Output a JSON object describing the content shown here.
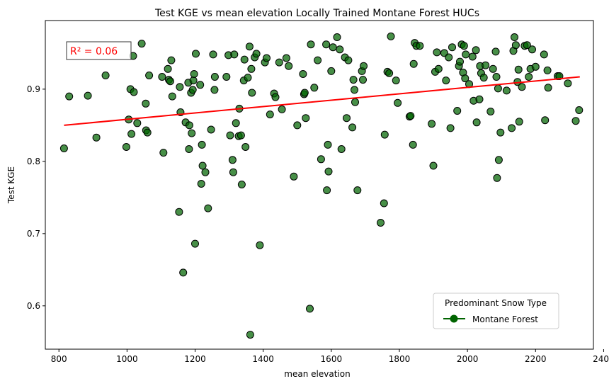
{
  "chart_data": {
    "type": "scatter",
    "title": "Test KGE vs mean elevation Locally Trained Montane Forest HUCs",
    "xlabel": "mean elevation",
    "ylabel": "Test KGE",
    "xlim": [
      760,
      2370
    ],
    "ylim": [
      0.54,
      0.995
    ],
    "xticks": [
      800,
      1000,
      1200,
      1400,
      1600,
      1800,
      2000,
      2200,
      2400
    ],
    "yticks": [
      0.6,
      0.7,
      0.8,
      0.9
    ],
    "grid": false,
    "legend": {
      "title": "Predominant Snow Type",
      "entries": [
        {
          "label": "Montane Forest",
          "color": "#006400"
        }
      ],
      "placement": "lower-right"
    },
    "annotation": {
      "text": "R² = 0.06",
      "color": "#ff0000",
      "placement": "top-left"
    },
    "marker_color": "#006400",
    "trend_line": {
      "color": "#ff0000",
      "x": [
        815,
        2330
      ],
      "y": [
        0.85,
        0.917
      ]
    },
    "points": [
      [
        815,
        0.818
      ],
      [
        830,
        0.89
      ],
      [
        885,
        0.891
      ],
      [
        910,
        0.833
      ],
      [
        937,
        0.919
      ],
      [
        998,
        0.82
      ],
      [
        1005,
        0.858
      ],
      [
        1010,
        0.9
      ],
      [
        1013,
        0.838
      ],
      [
        1018,
        0.946
      ],
      [
        1020,
        0.896
      ],
      [
        1030,
        0.853
      ],
      [
        1043,
        0.963
      ],
      [
        1055,
        0.88
      ],
      [
        1056,
        0.843
      ],
      [
        1060,
        0.84
      ],
      [
        1065,
        0.919
      ],
      [
        1103,
        0.917
      ],
      [
        1107,
        0.812
      ],
      [
        1120,
        0.928
      ],
      [
        1123,
        0.913
      ],
      [
        1127,
        0.911
      ],
      [
        1130,
        0.94
      ],
      [
        1133,
        0.89
      ],
      [
        1153,
        0.73
      ],
      [
        1155,
        0.903
      ],
      [
        1157,
        0.868
      ],
      [
        1165,
        0.646
      ],
      [
        1172,
        0.854
      ],
      [
        1180,
        0.909
      ],
      [
        1182,
        0.817
      ],
      [
        1183,
        0.85
      ],
      [
        1188,
        0.895
      ],
      [
        1190,
        0.839
      ],
      [
        1193,
        0.899
      ],
      [
        1195,
        0.912
      ],
      [
        1197,
        0.921
      ],
      [
        1200,
        0.686
      ],
      [
        1202,
        0.949
      ],
      [
        1215,
        0.906
      ],
      [
        1218,
        0.769
      ],
      [
        1220,
        0.823
      ],
      [
        1222,
        0.794
      ],
      [
        1230,
        0.785
      ],
      [
        1238,
        0.735
      ],
      [
        1247,
        0.844
      ],
      [
        1253,
        0.948
      ],
      [
        1257,
        0.899
      ],
      [
        1258,
        0.917
      ],
      [
        1292,
        0.917
      ],
      [
        1298,
        0.947
      ],
      [
        1303,
        0.836
      ],
      [
        1310,
        0.802
      ],
      [
        1312,
        0.785
      ],
      [
        1315,
        0.948
      ],
      [
        1320,
        0.853
      ],
      [
        1328,
        0.835
      ],
      [
        1330,
        0.873
      ],
      [
        1335,
        0.836
      ],
      [
        1337,
        0.768
      ],
      [
        1343,
        0.912
      ],
      [
        1345,
        0.941
      ],
      [
        1348,
        0.82
      ],
      [
        1355,
        0.916
      ],
      [
        1360,
        0.959
      ],
      [
        1362,
        0.56
      ],
      [
        1365,
        0.928
      ],
      [
        1367,
        0.895
      ],
      [
        1375,
        0.944
      ],
      [
        1380,
        0.949
      ],
      [
        1390,
        0.684
      ],
      [
        1405,
        0.937
      ],
      [
        1410,
        0.943
      ],
      [
        1420,
        0.865
      ],
      [
        1432,
        0.894
      ],
      [
        1436,
        0.889
      ],
      [
        1447,
        0.937
      ],
      [
        1455,
        0.872
      ],
      [
        1468,
        0.943
      ],
      [
        1475,
        0.932
      ],
      [
        1490,
        0.779
      ],
      [
        1500,
        0.85
      ],
      [
        1517,
        0.921
      ],
      [
        1520,
        0.893
      ],
      [
        1522,
        0.895
      ],
      [
        1525,
        0.86
      ],
      [
        1537,
        0.596
      ],
      [
        1540,
        0.962
      ],
      [
        1550,
        0.902
      ],
      [
        1560,
        0.94
      ],
      [
        1570,
        0.803
      ],
      [
        1585,
        0.962
      ],
      [
        1587,
        0.76
      ],
      [
        1590,
        0.823
      ],
      [
        1592,
        0.786
      ],
      [
        1600,
        0.925
      ],
      [
        1605,
        0.958
      ],
      [
        1617,
        0.972
      ],
      [
        1625,
        0.955
      ],
      [
        1630,
        0.817
      ],
      [
        1640,
        0.944
      ],
      [
        1645,
        0.86
      ],
      [
        1650,
        0.94
      ],
      [
        1662,
        0.847
      ],
      [
        1665,
        0.913
      ],
      [
        1668,
        0.899
      ],
      [
        1670,
        0.882
      ],
      [
        1677,
        0.76
      ],
      [
        1690,
        0.925
      ],
      [
        1693,
        0.913
      ],
      [
        1695,
        0.932
      ],
      [
        1745,
        0.715
      ],
      [
        1755,
        0.742
      ],
      [
        1757,
        0.837
      ],
      [
        1765,
        0.924
      ],
      [
        1770,
        0.922
      ],
      [
        1775,
        0.973
      ],
      [
        1790,
        0.912
      ],
      [
        1795,
        0.881
      ],
      [
        1830,
        0.862
      ],
      [
        1833,
        0.863
      ],
      [
        1840,
        0.823
      ],
      [
        1842,
        0.935
      ],
      [
        1845,
        0.964
      ],
      [
        1850,
        0.96
      ],
      [
        1860,
        0.96
      ],
      [
        1895,
        0.852
      ],
      [
        1900,
        0.794
      ],
      [
        1905,
        0.924
      ],
      [
        1910,
        0.951
      ],
      [
        1915,
        0.928
      ],
      [
        1932,
        0.95
      ],
      [
        1937,
        0.912
      ],
      [
        1945,
        0.944
      ],
      [
        1950,
        0.846
      ],
      [
        1955,
        0.958
      ],
      [
        1970,
        0.87
      ],
      [
        1975,
        0.932
      ],
      [
        1978,
        0.938
      ],
      [
        1983,
        0.962
      ],
      [
        1987,
        0.923
      ],
      [
        1990,
        0.96
      ],
      [
        1993,
        0.915
      ],
      [
        1995,
        0.948
      ],
      [
        2005,
        0.907
      ],
      [
        2015,
        0.945
      ],
      [
        2018,
        0.884
      ],
      [
        2025,
        0.954
      ],
      [
        2027,
        0.854
      ],
      [
        2035,
        0.886
      ],
      [
        2037,
        0.932
      ],
      [
        2040,
        0.922
      ],
      [
        2048,
        0.916
      ],
      [
        2053,
        0.933
      ],
      [
        2068,
        0.869
      ],
      [
        2075,
        0.928
      ],
      [
        2083,
        0.952
      ],
      [
        2085,
        0.917
      ],
      [
        2087,
        0.777
      ],
      [
        2090,
        0.901
      ],
      [
        2092,
        0.802
      ],
      [
        2097,
        0.84
      ],
      [
        2115,
        0.898
      ],
      [
        2130,
        0.846
      ],
      [
        2135,
        0.953
      ],
      [
        2138,
        0.972
      ],
      [
        2142,
        0.961
      ],
      [
        2147,
        0.91
      ],
      [
        2150,
        0.927
      ],
      [
        2152,
        0.855
      ],
      [
        2160,
        0.903
      ],
      [
        2168,
        0.96
      ],
      [
        2175,
        0.961
      ],
      [
        2180,
        0.917
      ],
      [
        2185,
        0.928
      ],
      [
        2190,
        0.955
      ],
      [
        2200,
        0.931
      ],
      [
        2225,
        0.948
      ],
      [
        2228,
        0.857
      ],
      [
        2235,
        0.926
      ],
      [
        2237,
        0.902
      ],
      [
        2265,
        0.918
      ],
      [
        2270,
        0.918
      ],
      [
        2295,
        0.908
      ],
      [
        2318,
        0.856
      ],
      [
        2328,
        0.871
      ]
    ]
  }
}
